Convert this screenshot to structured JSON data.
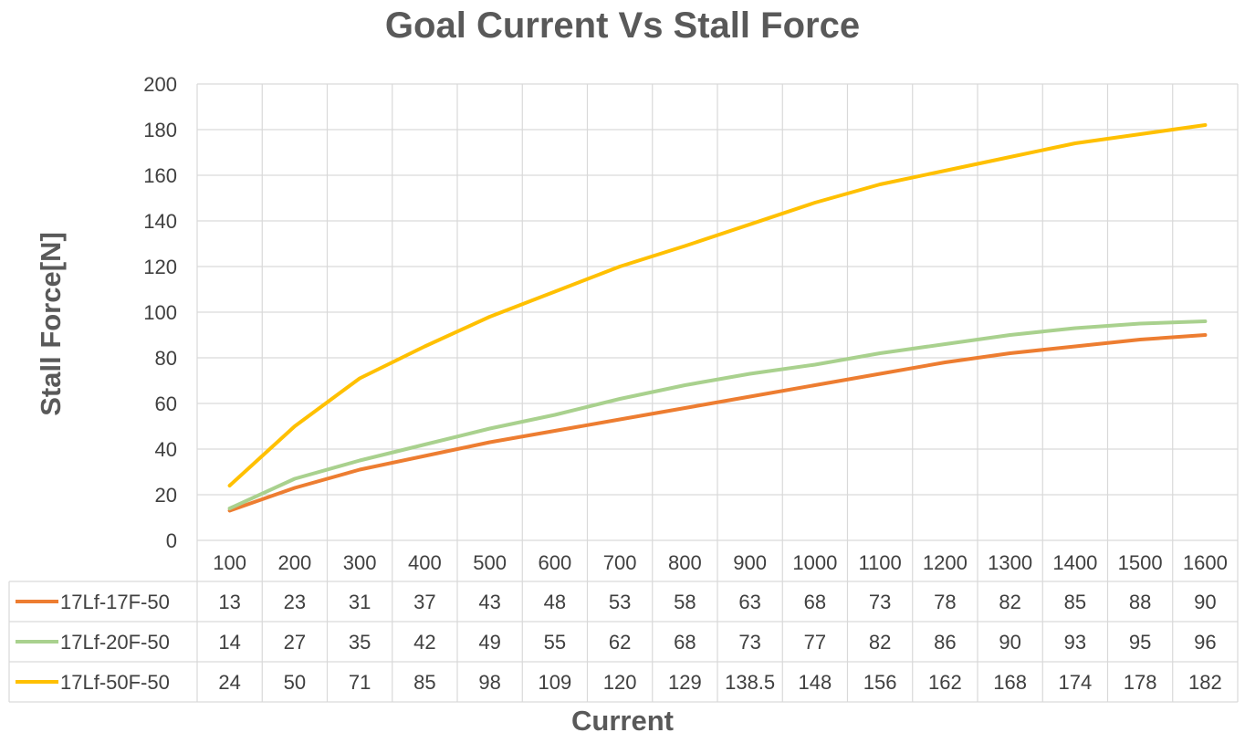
{
  "chart_data": {
    "type": "line",
    "title": "Goal Current Vs Stall Force",
    "xlabel": "Current",
    "ylabel": "Stall Force[N]",
    "ylim": [
      0,
      200
    ],
    "yticks": [
      0,
      20,
      40,
      60,
      80,
      100,
      120,
      140,
      160,
      180,
      200
    ],
    "grid": true,
    "legend": "data-table",
    "categories": [
      "100",
      "200",
      "300",
      "400",
      "500",
      "600",
      "700",
      "800",
      "900",
      "1000",
      "1100",
      "1200",
      "1300",
      "1400",
      "1500",
      "1600"
    ],
    "series": [
      {
        "name": "17Lf-17F-50",
        "color": "#ED7D31",
        "values": [
          13,
          23,
          31,
          37,
          43,
          48,
          53,
          58,
          63,
          68,
          73,
          78,
          82,
          85,
          88,
          90
        ]
      },
      {
        "name": "17Lf-20F-50",
        "color": "#A9D18E",
        "values": [
          14,
          27,
          35,
          42,
          49,
          55,
          62,
          68,
          73,
          77,
          82,
          86,
          90,
          93,
          95,
          96
        ]
      },
      {
        "name": "17Lf-50F-50",
        "color": "#FFC000",
        "values": [
          24,
          50,
          71,
          85,
          98,
          109,
          120,
          129,
          138.5,
          148,
          156,
          162,
          168,
          174,
          178,
          182
        ]
      }
    ]
  }
}
